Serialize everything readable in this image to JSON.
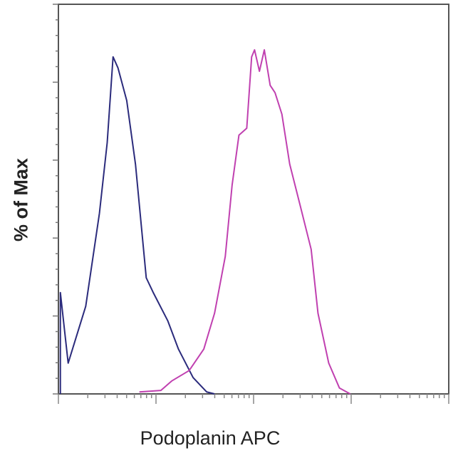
{
  "chart_data": {
    "type": "line",
    "title": "",
    "xlabel": "Podoplanin APC",
    "ylabel": "% of Max",
    "xscale": "log (decades, unlabeled)",
    "xlim": [
      0,
      4
    ],
    "ylim": [
      0,
      100
    ],
    "grid": false,
    "legend": "none",
    "series": [
      {
        "color": "#2b2b7c",
        "x": [
          0.02,
          0.02,
          0.1,
          0.28,
          0.42,
          0.5,
          0.56,
          0.61,
          0.7,
          0.79,
          0.9,
          0.97,
          1.12,
          1.23,
          1.38,
          1.52,
          1.6
        ],
        "y": [
          0,
          26,
          7.9,
          22.5,
          46.3,
          64.5,
          86.5,
          83.7,
          75.3,
          58.9,
          29.8,
          26.1,
          18.8,
          11.5,
          4.2,
          0.5,
          0
        ]
      },
      {
        "color": "#c040b0",
        "x": [
          0.83,
          1.05,
          1.16,
          1.34,
          1.49,
          1.6,
          1.71,
          1.78,
          1.85,
          1.93,
          1.98,
          2.01,
          2.06,
          2.11,
          2.17,
          2.22,
          2.29,
          2.37,
          2.48,
          2.59,
          2.66,
          2.77,
          2.88,
          2.99
        ],
        "y": [
          0.5,
          0.9,
          3.3,
          6.0,
          11.5,
          20.7,
          35.3,
          53.6,
          66.4,
          68.2,
          86.5,
          88.3,
          82.8,
          88.3,
          79.2,
          77.3,
          71.8,
          59.0,
          48.1,
          37.1,
          20.7,
          7.9,
          1.5,
          0
        ]
      }
    ]
  }
}
